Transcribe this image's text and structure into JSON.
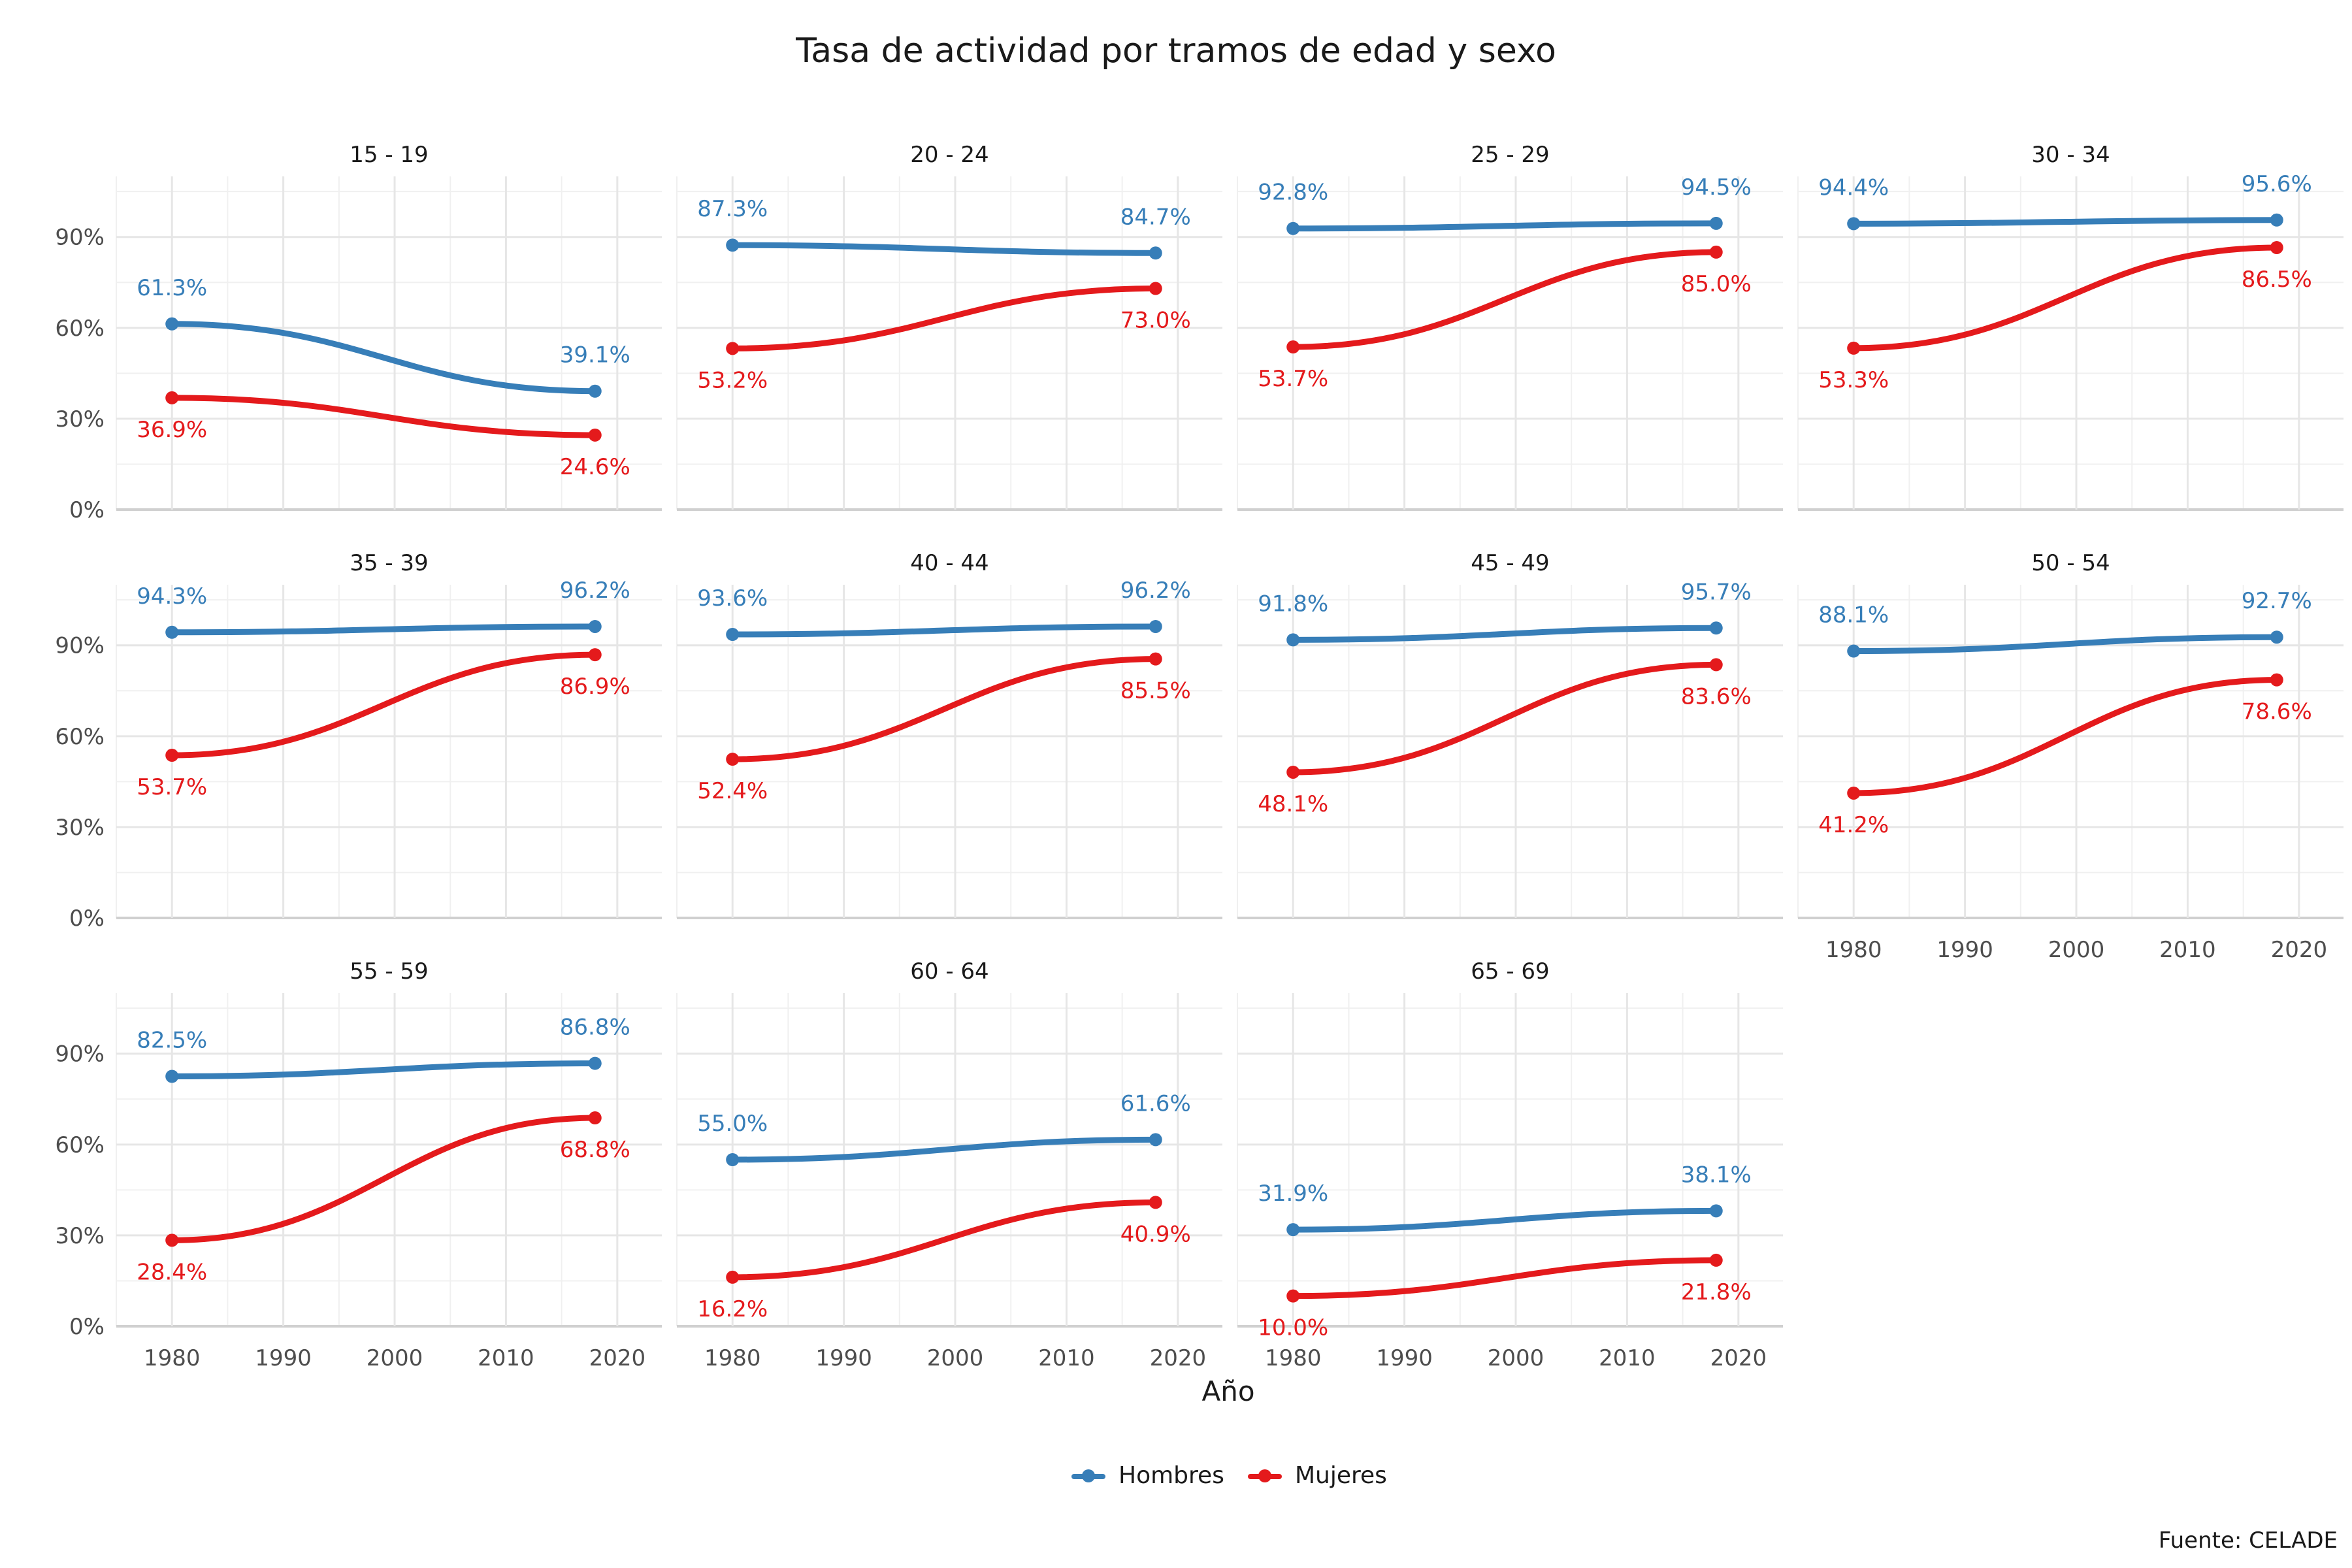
{
  "title": "Tasa de actividad por tramos de edad y sexo",
  "xlabel": "Año",
  "caption": "Fuente: CELADE",
  "colors": {
    "Hombres": "#377eb8",
    "Mujeres": "#e41a1c"
  },
  "legend": [
    {
      "label": "Hombres",
      "color": "#377eb8"
    },
    {
      "label": "Mujeres",
      "color": "#e41a1c"
    }
  ],
  "chart_data": {
    "type": "line",
    "facets": [
      "15 - 19",
      "20 - 24",
      "25 - 29",
      "30 - 34",
      "35 - 39",
      "40 - 44",
      "45 - 49",
      "50 - 54",
      "55 - 59",
      "60 - 64",
      "65 - 69"
    ],
    "x": [
      1980,
      2018
    ],
    "xticks": [
      1980,
      1990,
      2000,
      2010,
      2020
    ],
    "xlim": [
      1975,
      2024
    ],
    "yticks": [
      "0%",
      "30%",
      "60%",
      "90%"
    ],
    "ylim": [
      0,
      110
    ],
    "series": [
      {
        "name": "Hombres",
        "values": [
          [
            61.3,
            39.1
          ],
          [
            87.3,
            84.7
          ],
          [
            92.8,
            94.5
          ],
          [
            94.4,
            95.6
          ],
          [
            94.3,
            96.2
          ],
          [
            93.6,
            96.2
          ],
          [
            91.8,
            95.7
          ],
          [
            88.1,
            92.7
          ],
          [
            82.5,
            86.8
          ],
          [
            55.0,
            61.6
          ],
          [
            31.9,
            38.1
          ]
        ],
        "labels": [
          [
            "61.3%",
            "39.1%"
          ],
          [
            "87.3%",
            "84.7%"
          ],
          [
            "92.8%",
            "94.5%"
          ],
          [
            "94.4%",
            "95.6%"
          ],
          [
            "94.3%",
            "96.2%"
          ],
          [
            "93.6%",
            "96.2%"
          ],
          [
            "91.8%",
            "95.7%"
          ],
          [
            "88.1%",
            "92.7%"
          ],
          [
            "82.5%",
            "86.8%"
          ],
          [
            "55.0%",
            "61.6%"
          ],
          [
            "31.9%",
            "38.1%"
          ]
        ]
      },
      {
        "name": "Mujeres",
        "values": [
          [
            36.9,
            24.6
          ],
          [
            53.2,
            73.0
          ],
          [
            53.7,
            85.0
          ],
          [
            53.3,
            86.5
          ],
          [
            53.7,
            86.9
          ],
          [
            52.4,
            85.5
          ],
          [
            48.1,
            83.6
          ],
          [
            41.2,
            78.6
          ],
          [
            28.4,
            68.8
          ],
          [
            16.2,
            40.9
          ],
          [
            10.0,
            21.8
          ]
        ],
        "labels": [
          [
            "36.9%",
            "24.6%"
          ],
          [
            "53.2%",
            "73.0%"
          ],
          [
            "53.7%",
            "85.0%"
          ],
          [
            "53.3%",
            "86.5%"
          ],
          [
            "53.7%",
            "86.9%"
          ],
          [
            "52.4%",
            "85.5%"
          ],
          [
            "48.1%",
            "83.6%"
          ],
          [
            "41.2%",
            "78.6%"
          ],
          [
            "28.4%",
            "68.8%"
          ],
          [
            "16.2%",
            "40.9%"
          ],
          [
            "10.0%",
            "21.8%"
          ]
        ]
      }
    ]
  }
}
